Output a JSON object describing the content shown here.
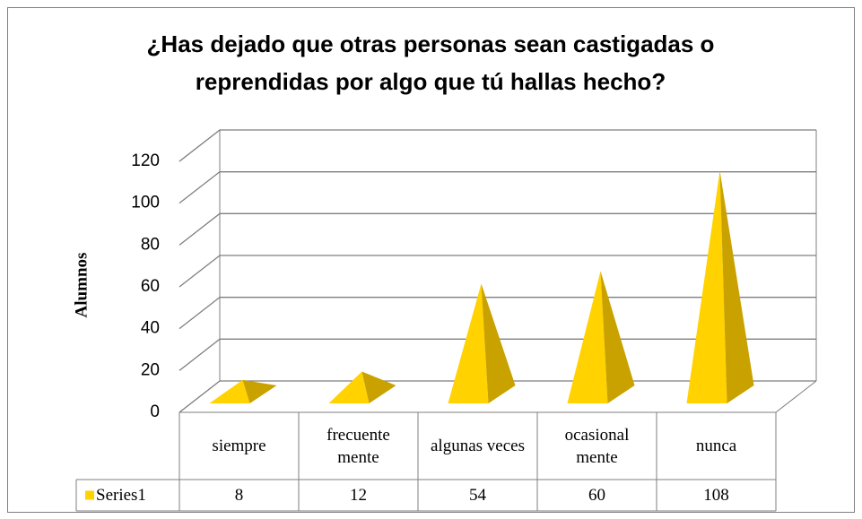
{
  "chart_data": {
    "type": "pyramid3d",
    "title": "¿Has dejado que otras personas sean castigadas o reprendidas por algo que tú hallas hecho?",
    "y_label": "Alumnos",
    "categories": [
      "siempre",
      "frecuente mente",
      "algunas veces",
      "ocasional mente",
      "nunca"
    ],
    "series": [
      {
        "name": "Series1",
        "color": "#ffd200",
        "values": [
          8,
          12,
          54,
          60,
          108
        ]
      }
    ],
    "ylim": [
      0,
      120
    ],
    "yticks": [
      0,
      20,
      40,
      60,
      80,
      100,
      120
    ],
    "grid": true,
    "data_table": true
  }
}
